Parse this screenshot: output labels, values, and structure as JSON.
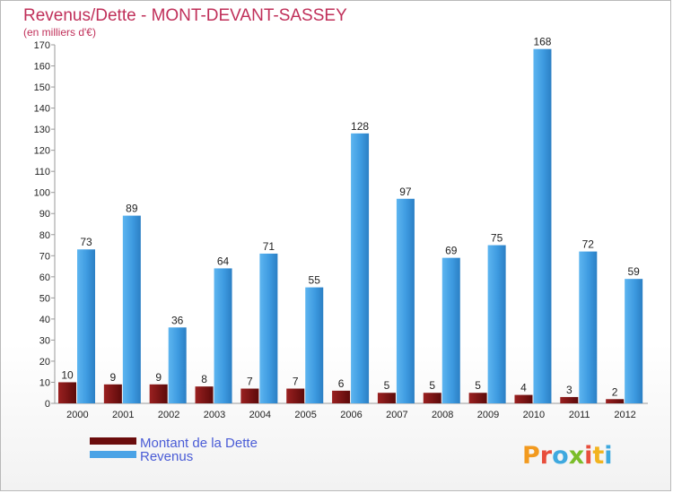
{
  "chart_data": {
    "type": "bar",
    "title": "Revenus/Dette - MONT-DEVANT-SASSEY",
    "subtitle": "(en milliers d'€)",
    "categories": [
      "2000",
      "2001",
      "2002",
      "2003",
      "2004",
      "2005",
      "2006",
      "2007",
      "2008",
      "2009",
      "2010",
      "2011",
      "2012"
    ],
    "series": [
      {
        "name": "Montant de la Dette",
        "color": "#7a0f0f",
        "values": [
          10,
          9,
          9,
          8,
          7,
          7,
          6,
          5,
          5,
          5,
          4,
          3,
          2
        ]
      },
      {
        "name": "Revenus",
        "color": "#4aa3e6",
        "values": [
          73,
          89,
          36,
          64,
          71,
          55,
          128,
          97,
          69,
          75,
          168,
          72,
          59
        ]
      }
    ],
    "ylim": [
      0,
      170
    ],
    "ytick_step": 10,
    "grid": false,
    "legend": "bottom-left"
  },
  "logo": {
    "text": "Proxiti"
  }
}
